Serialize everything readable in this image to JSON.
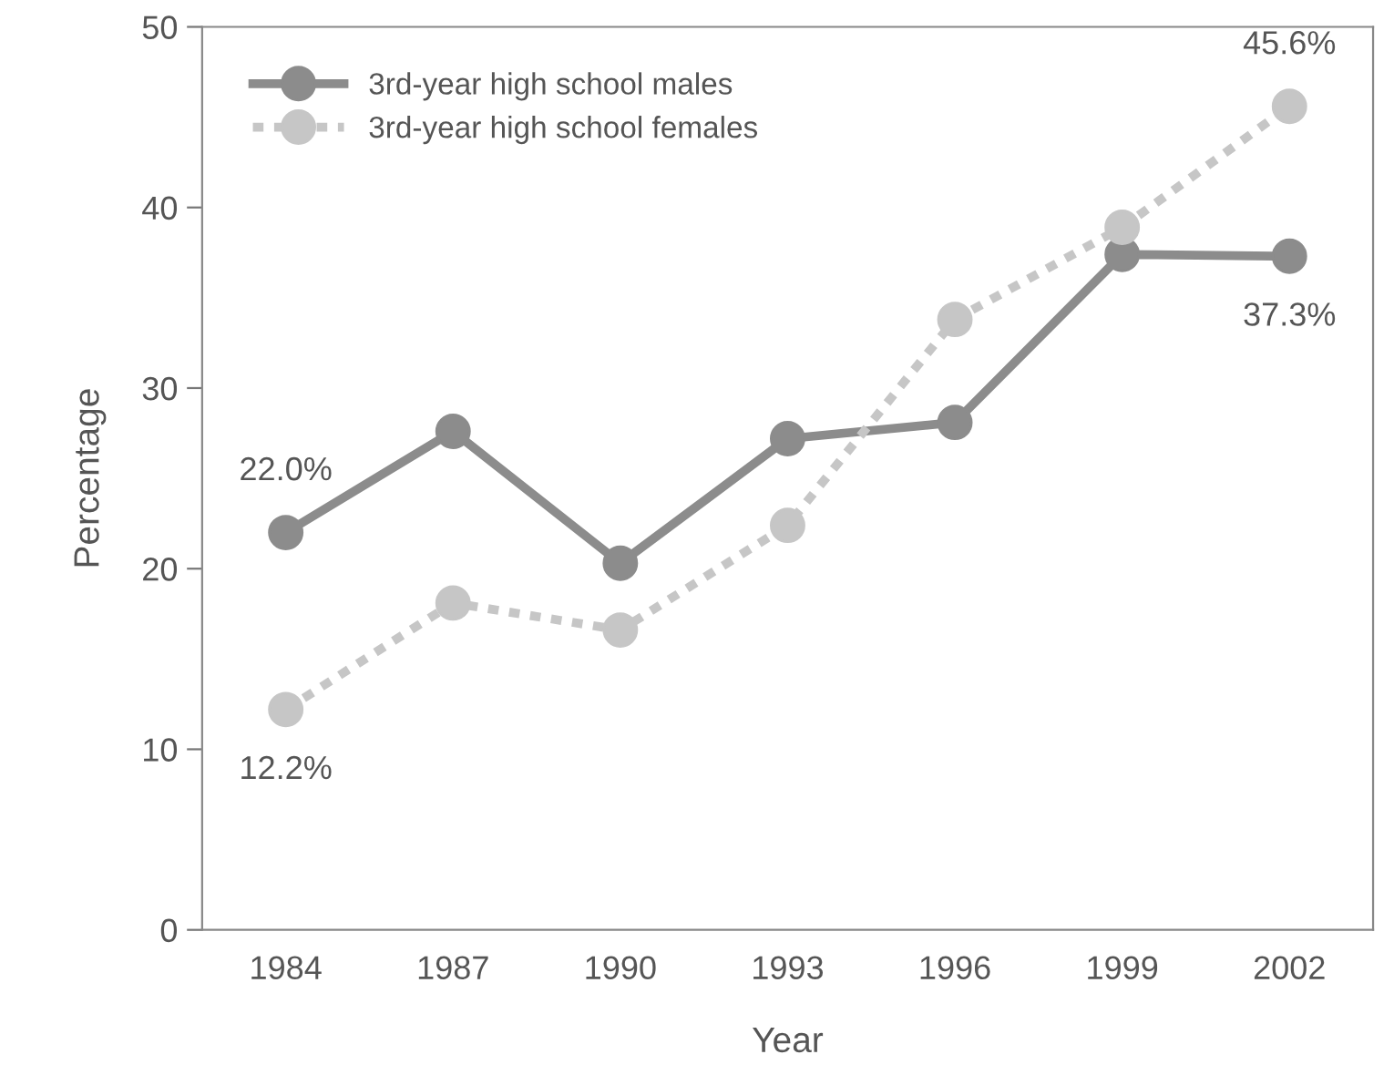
{
  "chart_data": {
    "type": "line",
    "xlabel": "Year",
    "ylabel": "Percentage",
    "categories": [
      "1984",
      "1987",
      "1990",
      "1993",
      "1996",
      "1999",
      "2002"
    ],
    "series": [
      {
        "name": "3rd-year high school males",
        "color": "#8c8c8c",
        "line_style": "solid",
        "values": [
          22.0,
          27.6,
          20.3,
          27.2,
          28.1,
          37.4,
          37.3
        ],
        "value_labels": [
          "22.0%",
          null,
          null,
          null,
          null,
          null,
          "37.3%"
        ]
      },
      {
        "name": "3rd-year high school females",
        "color": "#c6c6c6",
        "line_style": "dotted",
        "values": [
          12.2,
          18.1,
          16.6,
          22.4,
          33.8,
          38.9,
          45.6
        ],
        "value_labels": [
          "12.2%",
          null,
          null,
          null,
          null,
          null,
          "45.6%"
        ]
      }
    ],
    "ylim": [
      0,
      50
    ],
    "yticks": [
      0,
      10,
      20,
      30,
      40,
      50
    ],
    "grid": false,
    "legend": "top left",
    "marker": "circle"
  }
}
